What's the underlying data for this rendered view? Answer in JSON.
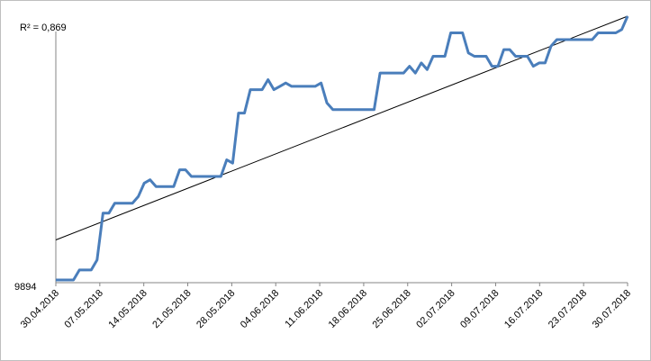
{
  "chart_data": {
    "type": "line",
    "annotation": "R² = 0,869",
    "y_tick_label": "9894",
    "x_tick_labels": [
      "30.04.2018",
      "07.05.2018",
      "14.05.2018",
      "21.05.2018",
      "28.05.2018",
      "04.06.2018",
      "11.06.2018",
      "18.06.2018",
      "25.06.2018",
      "02.07.2018",
      "09.07.2018",
      "16.07.2018",
      "23.07.2018",
      "30.07.2018"
    ],
    "series": [
      {
        "values": [
          9894,
          9894,
          9894,
          9894,
          9897,
          9897,
          9897,
          9900,
          9914,
          9914,
          9917,
          9917,
          9917,
          9917,
          9919,
          9923,
          9924,
          9922,
          9922,
          9922,
          9922,
          9927,
          9927,
          9925,
          9925,
          9925,
          9925,
          9925,
          9925,
          9930,
          9929,
          9944,
          9944,
          9951,
          9951,
          9951,
          9954,
          9951,
          9952,
          9953,
          9952,
          9952,
          9952,
          9952,
          9952,
          9953,
          9947,
          9945,
          9945,
          9945,
          9945,
          9945,
          9945,
          9945,
          9945,
          9956,
          9956,
          9956,
          9956,
          9956,
          9958,
          9956,
          9959,
          9957,
          9961,
          9961,
          9961,
          9968,
          9968,
          9968,
          9962,
          9961,
          9961,
          9961,
          9958,
          9958,
          9963,
          9963,
          9961,
          9961,
          9961,
          9958,
          9959,
          9959,
          9964,
          9966,
          9966,
          9966,
          9966,
          9966,
          9966,
          9966,
          9968,
          9968,
          9968,
          9968,
          9969,
          9973
        ],
        "color": "#4a7ebb"
      },
      {
        "type": "trendline",
        "values": [
          9906,
          9973
        ],
        "color": "#000000"
      }
    ],
    "ylim": [
      9894,
      9973
    ],
    "grid": false,
    "legend": "none"
  }
}
